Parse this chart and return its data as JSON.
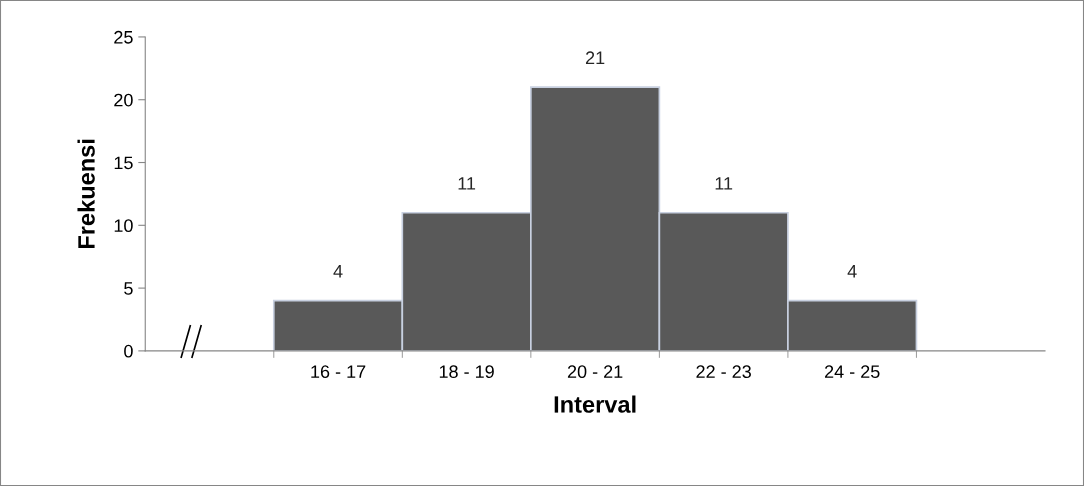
{
  "chart_data": {
    "type": "bar",
    "xlabel": "Interval",
    "ylabel": "Frekuensi",
    "categories": [
      null,
      "16 - 17",
      "18 - 19",
      "20 - 21",
      "22 - 23",
      "24 - 25",
      null
    ],
    "values": [
      null,
      4,
      11,
      21,
      11,
      4,
      null
    ],
    "color": "#595959",
    "ylim": [
      0,
      25
    ],
    "yticks": [
      0,
      5,
      10,
      15,
      20,
      25
    ],
    "data_labels": true,
    "grid": false,
    "legend": false
  }
}
